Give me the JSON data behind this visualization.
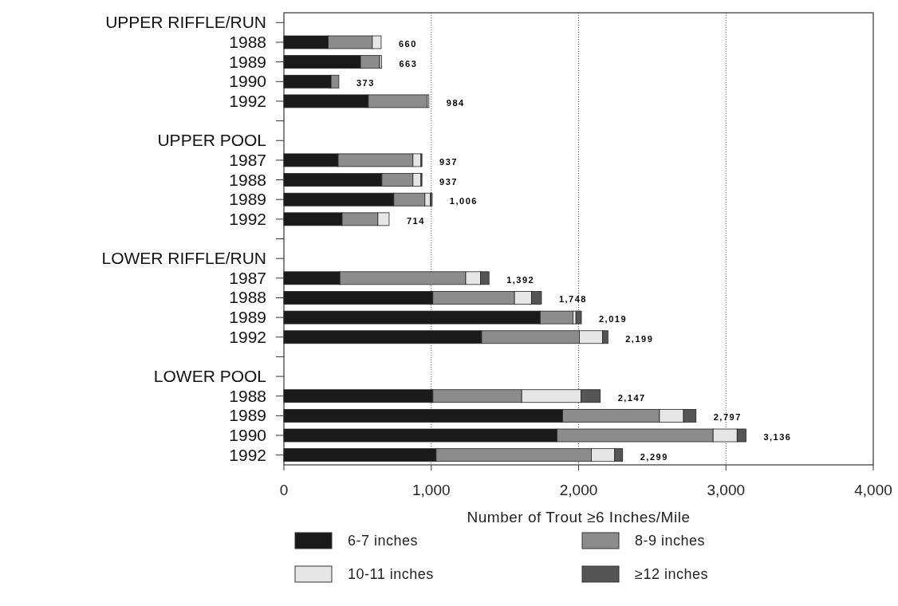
{
  "chart_data": {
    "type": "bar",
    "orientation": "horizontal",
    "stacked": true,
    "xlabel": "Number of Trout ≥6 Inches/Mile",
    "categories": [
      "UPPER RIFFLE/RUN",
      "1988",
      "1989",
      "1990",
      "1992",
      null,
      "UPPER POOL",
      "1987",
      "1988",
      "1989",
      "1992",
      null,
      "LOWER RIFFLE/RUN",
      "1987",
      "1988",
      "1989",
      "1992",
      null,
      "LOWER POOL",
      "1988",
      "1989",
      "1990",
      "1992"
    ],
    "series": [
      {
        "name": "6-7 inches",
        "color": "#1a1a1a",
        "values": [
          null,
          300,
          520,
          320,
          573,
          null,
          null,
          368,
          665,
          746,
          395,
          null,
          null,
          380,
          1011,
          1739,
          1342,
          null,
          null,
          1011,
          1891,
          1853,
          1033
        ]
      },
      {
        "name": "8-9 inches",
        "color": "#8c8c8c",
        "values": [
          null,
          300,
          130,
          53,
          400,
          null,
          null,
          508,
          211,
          211,
          243,
          null,
          null,
          854,
          554,
          223,
          663,
          null,
          null,
          603,
          658,
          1060,
          1054
        ]
      },
      {
        "name": "10-11 inches",
        "color": "#e6e6e6",
        "values": [
          null,
          60,
          13,
          null,
          11,
          null,
          null,
          54,
          54,
          36,
          76,
          null,
          null,
          100,
          115,
          20,
          158,
          null,
          null,
          402,
          163,
          163,
          158
        ]
      },
      {
        "name": "≥12 inches",
        "color": "#555555",
        "values": [
          null,
          null,
          null,
          null,
          null,
          null,
          null,
          7,
          7,
          13,
          null,
          null,
          null,
          58,
          68,
          37,
          36,
          null,
          null,
          131,
          85,
          60,
          54
        ]
      }
    ],
    "totals": [
      null,
      "660",
      "663",
      "373",
      "984",
      null,
      null,
      "937",
      "937",
      "1,006",
      "714",
      null,
      null,
      "1,392",
      "1,748",
      "2,019",
      "2,199",
      null,
      null,
      "2,147",
      "2,797",
      "3,136",
      "2,299"
    ],
    "xlim": [
      0,
      4000
    ],
    "xticks": [
      0,
      {
        "value": 1000,
        "label": "1,000"
      },
      {
        "value": 2000,
        "label": "2,000"
      },
      {
        "value": 3000,
        "label": "3,000"
      },
      {
        "value": 4000,
        "label": "4,000"
      }
    ],
    "grid": "x",
    "legend": "bottom"
  }
}
